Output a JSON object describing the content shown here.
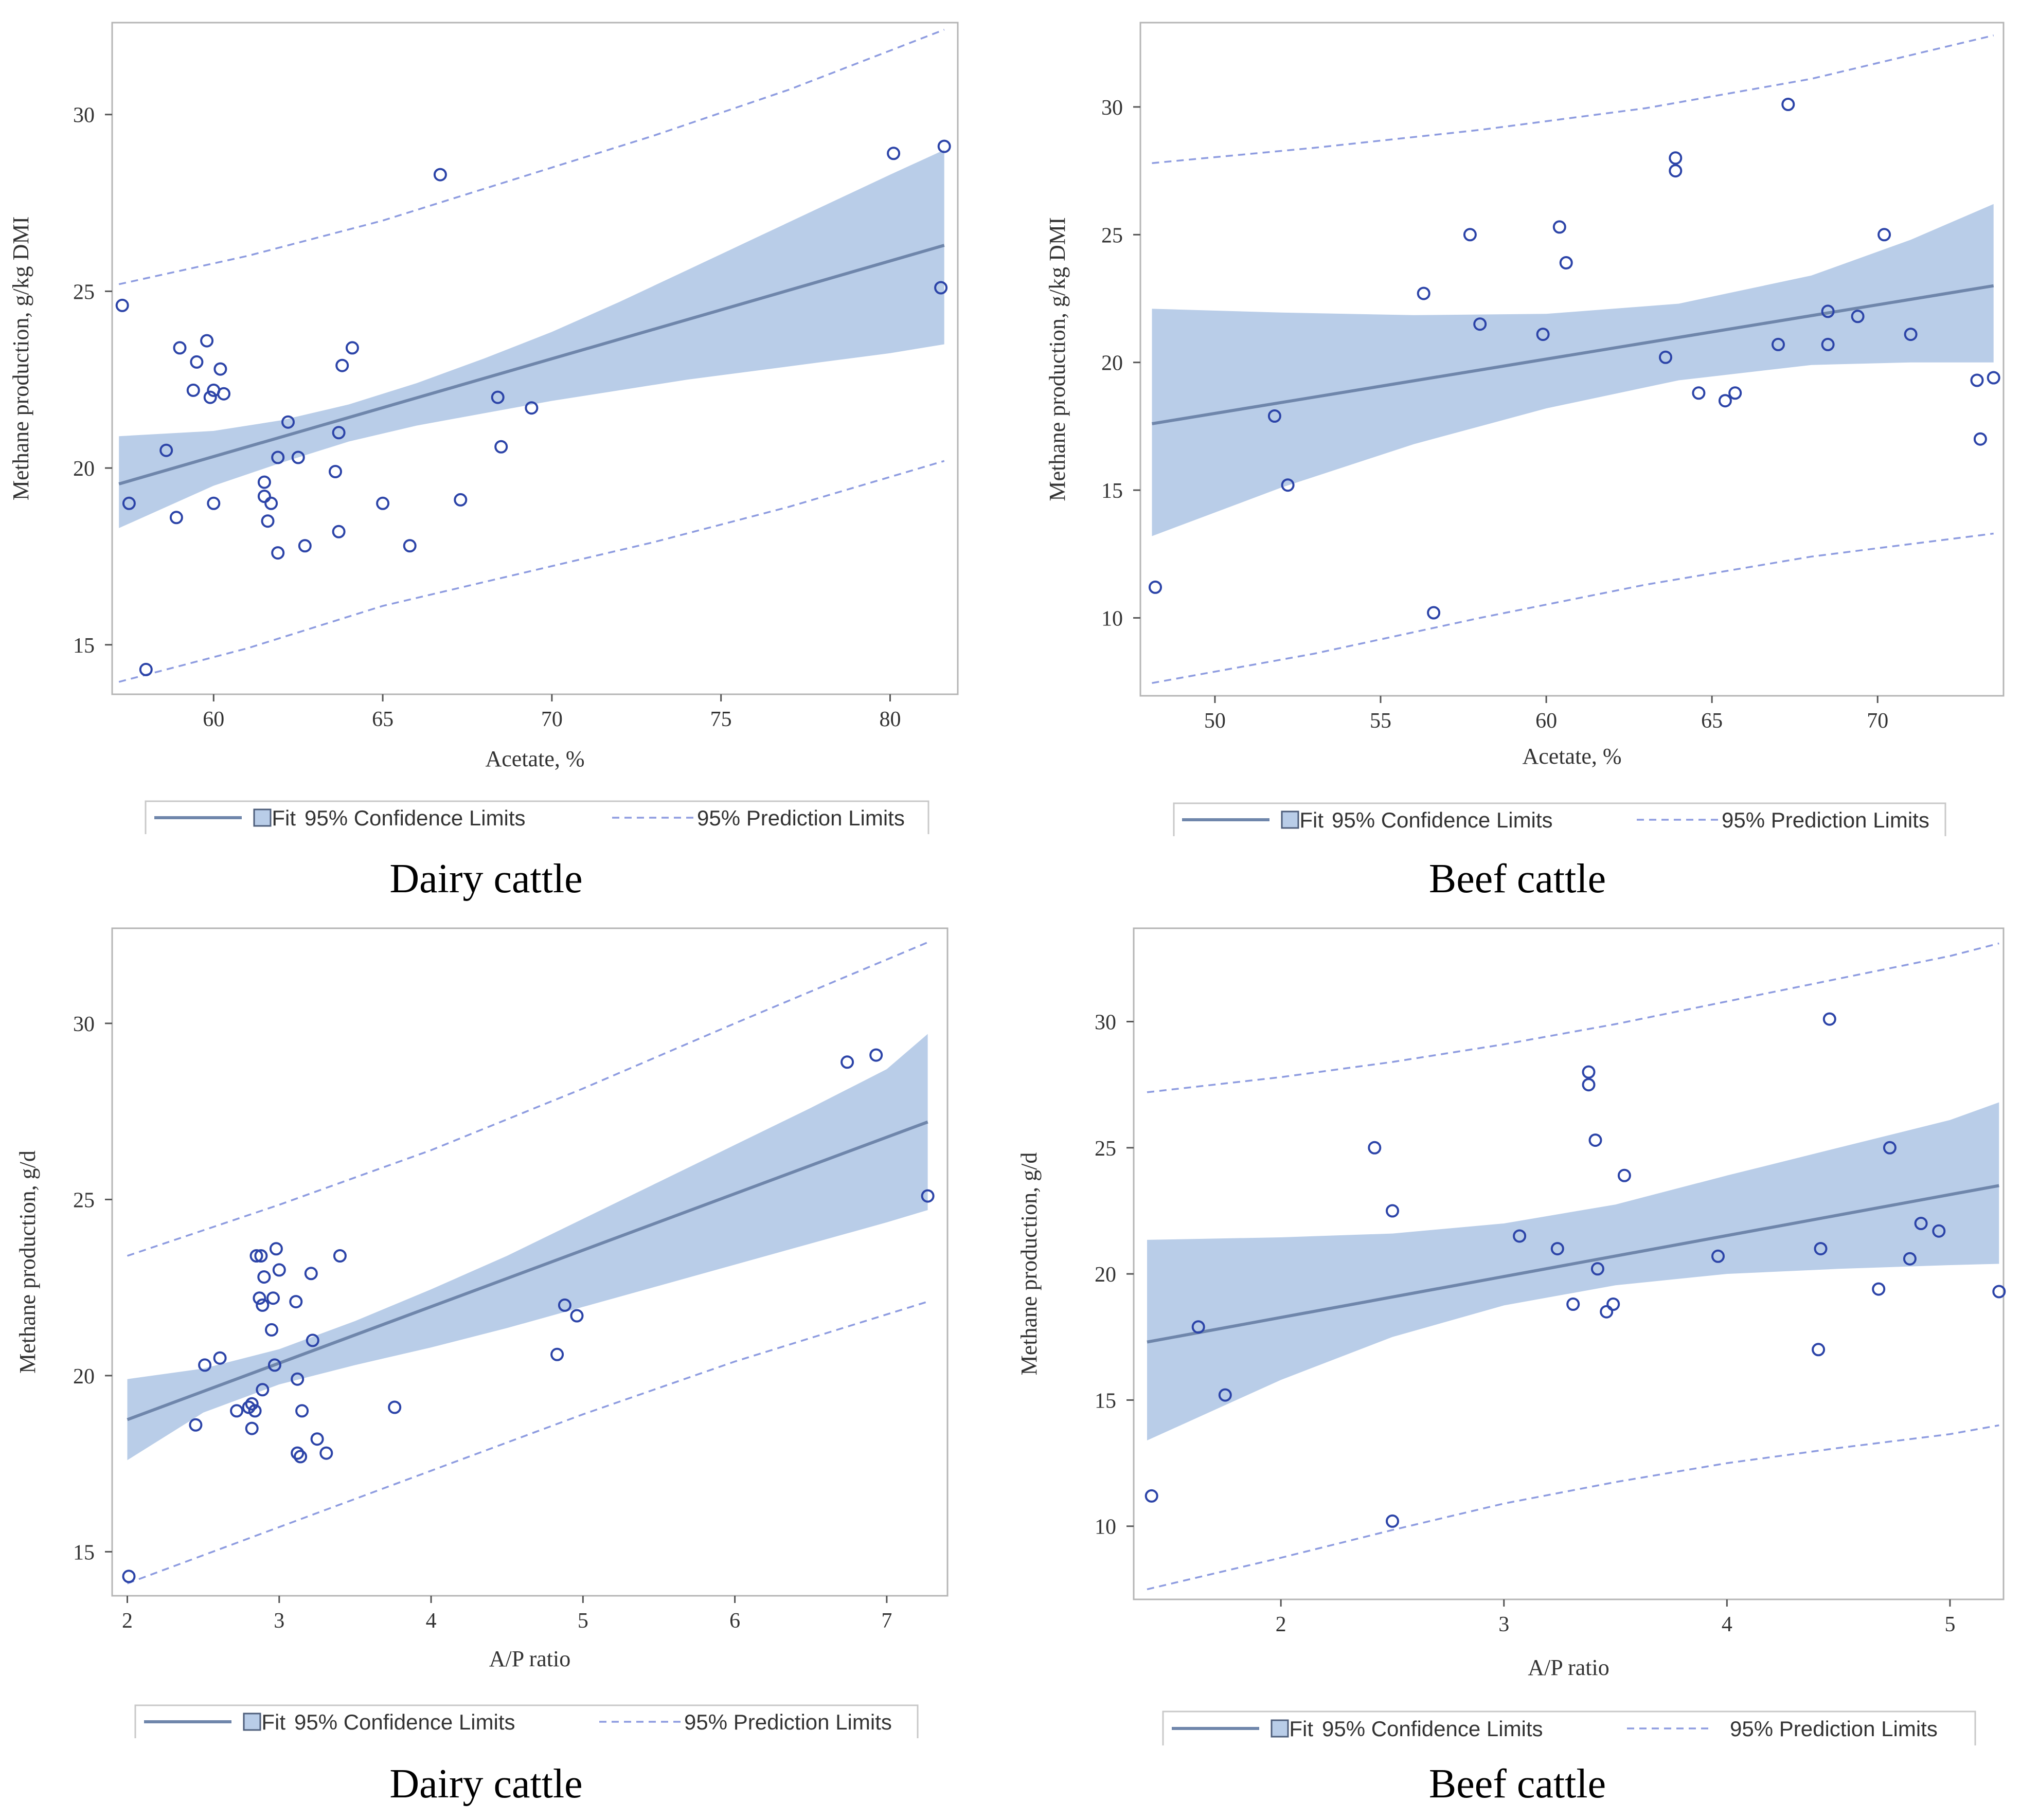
{
  "colors": {
    "fit": "#6f86ab",
    "band": "#b9cde8",
    "prediction": "#8e9ce0",
    "marker": "#2c44a8",
    "frame": "#b5b5b5"
  },
  "legend": {
    "fit": "Fit",
    "confidence": "95% Confidence Limits",
    "prediction": "95% Prediction Limits"
  },
  "chart_data": [
    {
      "type": "scatter",
      "caption": "Dairy cattle",
      "xlabel": "Acetate, %",
      "ylabel": "Methane production, g/kg DMI",
      "xlim": [
        57.0,
        82.0
      ],
      "ylim": [
        13.6,
        32.6
      ],
      "xticks": [
        60,
        65,
        70,
        75,
        80
      ],
      "yticks": [
        15,
        20,
        25,
        30
      ],
      "fit": [
        [
          57.2,
          19.55
        ],
        [
          81.6,
          26.3
        ]
      ],
      "confidence_upper": [
        [
          57.2,
          20.9
        ],
        [
          60,
          21.05
        ],
        [
          62,
          21.35
        ],
        [
          64,
          21.8
        ],
        [
          66,
          22.4
        ],
        [
          68,
          23.1
        ],
        [
          70,
          23.85
        ],
        [
          72,
          24.7
        ],
        [
          74,
          25.6
        ],
        [
          76,
          26.5
        ],
        [
          78,
          27.4
        ],
        [
          80,
          28.3
        ],
        [
          81.6,
          29.0
        ]
      ],
      "confidence_lower": [
        [
          57.2,
          18.3
        ],
        [
          60,
          19.5
        ],
        [
          62,
          20.15
        ],
        [
          64,
          20.75
        ],
        [
          66,
          21.2
        ],
        [
          68,
          21.55
        ],
        [
          70,
          21.9
        ],
        [
          72,
          22.2
        ],
        [
          74,
          22.5
        ],
        [
          76,
          22.75
        ],
        [
          78,
          23.0
        ],
        [
          80,
          23.25
        ],
        [
          81.6,
          23.5
        ]
      ],
      "prediction_upper": [
        [
          57.2,
          25.2
        ],
        [
          61,
          26.0
        ],
        [
          65,
          27.0
        ],
        [
          69,
          28.2
        ],
        [
          73,
          29.4
        ],
        [
          77,
          30.7
        ],
        [
          81.6,
          32.4
        ]
      ],
      "prediction_lower": [
        [
          57.2,
          13.95
        ],
        [
          61,
          14.9
        ],
        [
          65,
          16.1
        ],
        [
          69,
          17.0
        ],
        [
          73,
          17.9
        ],
        [
          77,
          18.9
        ],
        [
          81.6,
          20.2
        ]
      ],
      "points": [
        [
          57.3,
          24.6
        ],
        [
          57.5,
          19.0
        ],
        [
          58.0,
          14.3
        ],
        [
          58.6,
          20.5
        ],
        [
          58.9,
          18.6
        ],
        [
          59.0,
          23.4
        ],
        [
          59.4,
          22.2
        ],
        [
          59.5,
          23.0
        ],
        [
          59.8,
          23.6
        ],
        [
          59.9,
          22.0
        ],
        [
          60.0,
          22.2
        ],
        [
          60.0,
          19.0
        ],
        [
          60.2,
          22.8
        ],
        [
          60.3,
          22.1
        ],
        [
          61.5,
          19.6
        ],
        [
          61.5,
          19.2
        ],
        [
          61.6,
          18.5
        ],
        [
          61.7,
          19.0
        ],
        [
          61.9,
          20.3
        ],
        [
          61.9,
          17.6
        ],
        [
          62.2,
          21.3
        ],
        [
          62.5,
          20.3
        ],
        [
          62.7,
          17.8
        ],
        [
          63.6,
          19.9
        ],
        [
          63.7,
          21.0
        ],
        [
          63.7,
          18.2
        ],
        [
          63.8,
          22.9
        ],
        [
          64.1,
          23.4
        ],
        [
          65.0,
          19.0
        ],
        [
          65.8,
          17.8
        ],
        [
          66.7,
          28.3
        ],
        [
          67.3,
          19.1
        ],
        [
          68.4,
          22.0
        ],
        [
          68.5,
          20.6
        ],
        [
          69.4,
          21.7
        ],
        [
          80.1,
          28.9
        ],
        [
          81.5,
          25.1
        ],
        [
          81.6,
          29.1
        ]
      ]
    },
    {
      "type": "scatter",
      "caption": "Beef cattle",
      "xlabel": "Acetate, %",
      "ylabel": "Methane production, g/kg DMI",
      "xlim": [
        47.75,
        73.8
      ],
      "ylim": [
        6.95,
        33.3
      ],
      "xticks": [
        50,
        55,
        60,
        65,
        70
      ],
      "yticks": [
        10,
        15,
        20,
        25,
        30
      ],
      "fit": [
        [
          48.1,
          17.6
        ],
        [
          73.5,
          23.0
        ]
      ],
      "confidence_upper": [
        [
          48.1,
          22.1
        ],
        [
          52,
          21.95
        ],
        [
          56,
          21.85
        ],
        [
          60,
          21.9
        ],
        [
          64,
          22.3
        ],
        [
          68,
          23.4
        ],
        [
          71,
          24.8
        ],
        [
          73.5,
          26.2
        ]
      ],
      "confidence_lower": [
        [
          48.1,
          13.2
        ],
        [
          52,
          15.1
        ],
        [
          56,
          16.8
        ],
        [
          60,
          18.2
        ],
        [
          64,
          19.3
        ],
        [
          68,
          19.9
        ],
        [
          71,
          20.0
        ],
        [
          73.5,
          20.0
        ]
      ],
      "prediction_upper": [
        [
          48.1,
          27.8
        ],
        [
          53,
          28.4
        ],
        [
          58,
          29.1
        ],
        [
          63,
          29.95
        ],
        [
          68,
          31.1
        ],
        [
          73.5,
          32.8
        ]
      ],
      "prediction_lower": [
        [
          48.1,
          7.45
        ],
        [
          53,
          8.6
        ],
        [
          58,
          10.0
        ],
        [
          63,
          11.3
        ],
        [
          68,
          12.4
        ],
        [
          73.5,
          13.3
        ]
      ],
      "points": [
        [
          48.2,
          11.2
        ],
        [
          51.8,
          17.9
        ],
        [
          52.2,
          15.2
        ],
        [
          56.3,
          22.7
        ],
        [
          56.6,
          10.2
        ],
        [
          57.7,
          25.0
        ],
        [
          58.0,
          21.5
        ],
        [
          59.9,
          21.1
        ],
        [
          60.4,
          25.3
        ],
        [
          60.6,
          23.9
        ],
        [
          63.6,
          20.2
        ],
        [
          63.9,
          28.0
        ],
        [
          63.9,
          27.5
        ],
        [
          64.6,
          18.8
        ],
        [
          65.4,
          18.5
        ],
        [
          65.7,
          18.8
        ],
        [
          67.0,
          20.7
        ],
        [
          67.3,
          30.1
        ],
        [
          68.5,
          22.0
        ],
        [
          68.5,
          20.7
        ],
        [
          69.4,
          21.8
        ],
        [
          70.2,
          25.0
        ],
        [
          71.0,
          21.1
        ],
        [
          73.0,
          19.3
        ],
        [
          73.1,
          17.0
        ],
        [
          73.5,
          19.4
        ]
      ]
    },
    {
      "type": "scatter",
      "caption": "Dairy cattle",
      "xlabel": "A/P ratio",
      "ylabel": "Methane production, g/d",
      "xlim": [
        1.9,
        7.4
      ],
      "ylim": [
        13.75,
        32.7
      ],
      "xticks": [
        2,
        3,
        4,
        5,
        6,
        7
      ],
      "yticks": [
        15,
        20,
        25,
        30
      ],
      "fit": [
        [
          2.0,
          18.75
        ],
        [
          7.27,
          27.2
        ]
      ],
      "confidence_upper": [
        [
          2.0,
          19.9
        ],
        [
          2.5,
          20.2
        ],
        [
          3.0,
          20.75
        ],
        [
          3.5,
          21.55
        ],
        [
          4.0,
          22.45
        ],
        [
          4.5,
          23.4
        ],
        [
          5.0,
          24.45
        ],
        [
          5.5,
          25.5
        ],
        [
          6.0,
          26.55
        ],
        [
          6.5,
          27.6
        ],
        [
          7.0,
          28.7
        ],
        [
          7.27,
          29.7
        ]
      ],
      "confidence_lower": [
        [
          2.0,
          17.6
        ],
        [
          2.5,
          18.95
        ],
        [
          3.0,
          19.75
        ],
        [
          3.5,
          20.3
        ],
        [
          4.0,
          20.8
        ],
        [
          4.5,
          21.35
        ],
        [
          5.0,
          21.95
        ],
        [
          5.5,
          22.55
        ],
        [
          6.0,
          23.15
        ],
        [
          6.5,
          23.75
        ],
        [
          7.0,
          24.35
        ],
        [
          7.27,
          24.7
        ]
      ],
      "prediction_upper": [
        [
          2.0,
          23.4
        ],
        [
          3.0,
          24.85
        ],
        [
          4.0,
          26.4
        ],
        [
          5.0,
          28.15
        ],
        [
          6.0,
          30.0
        ],
        [
          7.27,
          32.3
        ]
      ],
      "prediction_lower": [
        [
          2.0,
          14.1
        ],
        [
          3.0,
          15.7
        ],
        [
          4.0,
          17.3
        ],
        [
          5.0,
          18.9
        ],
        [
          6.0,
          20.4
        ],
        [
          7.27,
          22.1
        ]
      ],
      "points": [
        [
          2.01,
          14.3
        ],
        [
          2.45,
          18.6
        ],
        [
          2.51,
          20.3
        ],
        [
          2.61,
          20.5
        ],
        [
          2.72,
          19.0
        ],
        [
          2.8,
          19.1
        ],
        [
          2.82,
          18.5
        ],
        [
          2.82,
          19.2
        ],
        [
          2.84,
          19.0
        ],
        [
          2.85,
          23.4
        ],
        [
          2.87,
          22.2
        ],
        [
          2.88,
          23.4
        ],
        [
          2.89,
          22.0
        ],
        [
          2.89,
          19.6
        ],
        [
          2.9,
          22.8
        ],
        [
          2.95,
          21.3
        ],
        [
          2.96,
          22.2
        ],
        [
          2.97,
          20.3
        ],
        [
          2.98,
          23.6
        ],
        [
          3.0,
          23.0
        ],
        [
          3.11,
          22.1
        ],
        [
          3.12,
          19.9
        ],
        [
          3.12,
          17.8
        ],
        [
          3.14,
          17.7
        ],
        [
          3.15,
          19.0
        ],
        [
          3.21,
          22.9
        ],
        [
          3.22,
          21.0
        ],
        [
          3.25,
          18.2
        ],
        [
          3.31,
          17.8
        ],
        [
          3.4,
          23.4
        ],
        [
          3.76,
          19.1
        ],
        [
          4.83,
          20.6
        ],
        [
          4.88,
          22.0
        ],
        [
          4.96,
          21.7
        ],
        [
          6.74,
          28.9
        ],
        [
          6.93,
          29.1
        ],
        [
          7.27,
          25.1
        ]
      ]
    },
    {
      "type": "scatter",
      "caption": "Beef cattle",
      "xlabel": "A/P ratio",
      "ylabel": "Methane production, g/d",
      "xlim": [
        1.34,
        5.24
      ],
      "ylim": [
        7.1,
        33.7
      ],
      "xticks": [
        2,
        3,
        4,
        5
      ],
      "yticks": [
        10,
        15,
        20,
        25,
        30
      ],
      "fit": [
        [
          1.4,
          17.3
        ],
        [
          5.22,
          23.5
        ]
      ],
      "confidence_upper": [
        [
          1.4,
          21.35
        ],
        [
          2.0,
          21.45
        ],
        [
          2.5,
          21.6
        ],
        [
          3.0,
          22.0
        ],
        [
          3.5,
          22.75
        ],
        [
          4.0,
          23.9
        ],
        [
          4.5,
          25.0
        ],
        [
          5.0,
          26.1
        ],
        [
          5.22,
          26.8
        ]
      ],
      "confidence_lower": [
        [
          1.4,
          13.4
        ],
        [
          2.0,
          15.8
        ],
        [
          2.5,
          17.5
        ],
        [
          3.0,
          18.75
        ],
        [
          3.5,
          19.55
        ],
        [
          4.0,
          20.0
        ],
        [
          4.5,
          20.2
        ],
        [
          5.0,
          20.35
        ],
        [
          5.22,
          20.4
        ]
      ],
      "prediction_upper": [
        [
          1.4,
          27.2
        ],
        [
          2.0,
          27.8
        ],
        [
          2.5,
          28.4
        ],
        [
          3.0,
          29.1
        ],
        [
          3.5,
          29.9
        ],
        [
          4.0,
          30.8
        ],
        [
          4.5,
          31.7
        ],
        [
          5.0,
          32.6
        ],
        [
          5.22,
          33.1
        ]
      ],
      "prediction_lower": [
        [
          1.4,
          7.5
        ],
        [
          2.0,
          8.75
        ],
        [
          2.5,
          9.85
        ],
        [
          3.0,
          10.9
        ],
        [
          3.5,
          11.75
        ],
        [
          4.0,
          12.5
        ],
        [
          4.5,
          13.1
        ],
        [
          5.0,
          13.65
        ],
        [
          5.22,
          14.0
        ]
      ],
      "points": [
        [
          1.42,
          11.2
        ],
        [
          1.63,
          17.9
        ],
        [
          1.75,
          15.2
        ],
        [
          2.42,
          25.0
        ],
        [
          2.5,
          22.5
        ],
        [
          2.5,
          10.2
        ],
        [
          3.07,
          21.5
        ],
        [
          3.24,
          21.0
        ],
        [
          3.31,
          18.8
        ],
        [
          3.38,
          28.0
        ],
        [
          3.38,
          27.5
        ],
        [
          3.41,
          25.3
        ],
        [
          3.42,
          20.2
        ],
        [
          3.46,
          18.5
        ],
        [
          3.49,
          18.8
        ],
        [
          3.54,
          23.9
        ],
        [
          3.96,
          20.7
        ],
        [
          4.41,
          17.0
        ],
        [
          4.42,
          21.0
        ],
        [
          4.46,
          30.1
        ],
        [
          4.68,
          19.4
        ],
        [
          4.73,
          25.0
        ],
        [
          4.82,
          20.6
        ],
        [
          4.87,
          22.0
        ],
        [
          4.95,
          21.7
        ],
        [
          5.22,
          19.3
        ]
      ]
    }
  ]
}
